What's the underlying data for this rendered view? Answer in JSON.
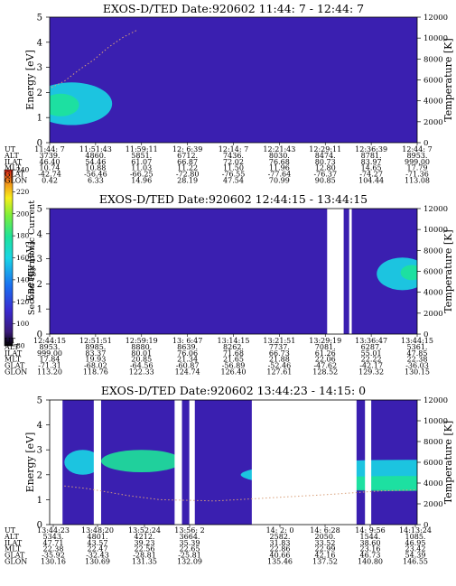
{
  "colors": {
    "background_low": "#3a1fb0",
    "background_mid": "#2f5ae0",
    "cyan": "#19d6e6",
    "green": "#1ee39a",
    "yellow": "#f7ee1a",
    "red": "#e12216",
    "gap": "#ffffff",
    "trace": "#d9a07a"
  },
  "colorbar": {
    "label": "Second Harmonic Current",
    "ticks": [
      "80",
      "100",
      "120",
      "140",
      "160",
      "180",
      "200",
      "220",
      "240"
    ],
    "range": [
      80,
      240
    ]
  },
  "chart_data": [
    {
      "type": "heatmap",
      "title": "EXOS-D/TED   Date:920602  11:44: 7 - 12:44: 7",
      "ylabel": "Energy [eV]",
      "y2label": "Temperature [K]",
      "ylim": [
        0,
        5
      ],
      "y2lim": [
        0,
        12000
      ],
      "yticks": [
        "0",
        "1",
        "2",
        "3",
        "4",
        "5"
      ],
      "y2ticks": [
        "0",
        "2000",
        "4000",
        "6000",
        "8000",
        "10000",
        "12000"
      ],
      "x_range": [
        0,
        1
      ],
      "gaps": [],
      "blobs": [
        {
          "t": 0.06,
          "e": 1.55,
          "rt": 0.11,
          "re": 0.85,
          "lvl": 0.42
        },
        {
          "t": 0.03,
          "e": 1.5,
          "rt": 0.05,
          "re": 0.45,
          "lvl": 0.6
        }
      ],
      "temperature_trace": [
        [
          0.005,
          2.2
        ],
        [
          0.04,
          2.45
        ],
        [
          0.08,
          2.9
        ],
        [
          0.12,
          3.3
        ],
        [
          0.16,
          3.8
        ],
        [
          0.2,
          4.2
        ],
        [
          0.24,
          4.5
        ]
      ],
      "labels_row": [
        "UT",
        "ALT",
        "ILAT",
        "MLT",
        "GLAT",
        "GLON"
      ],
      "columns": [
        [
          "11:44: 7",
          "3739.",
          "46.40",
          "10.74",
          "-42.74",
          "0.42"
        ],
        [
          "11:51:43",
          "4860.",
          "54.46",
          "10.88",
          "-56.46",
          "6.33"
        ],
        [
          "11:59:11",
          "5851.",
          "61.07",
          "11.03",
          "-66.25",
          "14.96"
        ],
        [
          "12: 6:39",
          "6712.",
          "66.87",
          "11.22",
          "-72.80",
          "28.19"
        ],
        [
          "12:14: 7",
          "7436.",
          "72.02",
          "11.50",
          "-76.55",
          "47.54"
        ],
        [
          "12:21:43",
          "8030.",
          "76.68",
          "11.96",
          "-77.64",
          "70.99"
        ],
        [
          "12:29:11",
          "8474.",
          "80.73",
          "12.80",
          "-76.37",
          "90.85"
        ],
        [
          "12:36:39",
          "8781.",
          "83.97",
          "14.65",
          "-74.27",
          "104.44"
        ],
        [
          "12:44: 7",
          "8953.",
          "999.00",
          "17.79",
          "-71.36",
          "113.08"
        ]
      ]
    },
    {
      "type": "heatmap",
      "title": "EXOS-D/TED   Date:920602  12:44:15 - 13:44:15",
      "ylabel": "Energy [eV]",
      "y2label": "Temperature [K]",
      "ylim": [
        0,
        5
      ],
      "y2lim": [
        0,
        12000
      ],
      "yticks": [
        "0",
        "1",
        "2",
        "3",
        "4",
        "5"
      ],
      "y2ticks": [
        "0",
        "2000",
        "4000",
        "6000",
        "8000",
        "10000",
        "12000"
      ],
      "x_range": [
        0,
        1
      ],
      "gaps": [
        [
          0.755,
          0.8
        ],
        [
          0.815,
          0.822
        ]
      ],
      "blobs": [
        {
          "t": 0.96,
          "e": 2.4,
          "rt": 0.07,
          "re": 0.65,
          "lvl": 0.45
        },
        {
          "t": 0.985,
          "e": 2.45,
          "rt": 0.03,
          "re": 0.3,
          "lvl": 0.6
        }
      ],
      "temperature_trace": [],
      "labels_row": [
        "UT",
        "ALT",
        "ILAT",
        "MLT",
        "GLAT",
        "GLON"
      ],
      "columns": [
        [
          "12:44:15",
          "8953.",
          "999.00",
          "17.84",
          "-71.31",
          "113.20"
        ],
        [
          "12:51:51",
          "8985.",
          "83.37",
          "19.93",
          "-68.02",
          "118.76"
        ],
        [
          "12:59:19",
          "8880.",
          "80.01",
          "20.85",
          "-64.56",
          "122.33"
        ],
        [
          "13: 6:47",
          "8639.",
          "76.06",
          "21.34",
          "-60.87",
          "124.74"
        ],
        [
          "13:14:15",
          "8262.",
          "71.68",
          "21.65",
          "-56.89",
          "126.40"
        ],
        [
          "13:21:51",
          "7737.",
          "66.73",
          "21.88",
          "-52.46",
          "127.61"
        ],
        [
          "13:29:19",
          "7081.",
          "61.26",
          "22.06",
          "-47.62",
          "128.52"
        ],
        [
          "13:36:47",
          "6287.",
          "55.01",
          "22.22",
          "-42.17",
          "129.32"
        ],
        [
          "13:44:15",
          "5361.",
          "47.85",
          "22.38",
          "-36.03",
          "130.15"
        ]
      ]
    },
    {
      "type": "heatmap",
      "title": "EXOS-D/TED   Date:920602  13:44:23 - 14:15: 0",
      "ylabel": "Energy [eV]",
      "y2label": "Temperature [K]",
      "ylim": [
        0,
        5
      ],
      "y2lim": [
        0,
        12000
      ],
      "yticks": [
        "0",
        "1",
        "2",
        "3",
        "4",
        "5"
      ],
      "y2ticks": [
        "0",
        "2000",
        "4000",
        "6000",
        "8000",
        "10000",
        "12000"
      ],
      "x_range": [
        0,
        1
      ],
      "gaps": [
        [
          0.0,
          0.035
        ],
        [
          0.12,
          0.14
        ],
        [
          0.34,
          0.36
        ],
        [
          0.38,
          0.395
        ],
        [
          0.55,
          0.835
        ],
        [
          0.858,
          0.875
        ]
      ],
      "blobs": [
        {
          "t": 0.09,
          "e": 2.5,
          "rt": 0.05,
          "re": 0.5,
          "lvl": 0.45
        },
        {
          "t": 0.25,
          "e": 2.55,
          "rt": 0.11,
          "re": 0.45,
          "lvl": 0.62
        },
        {
          "t": 0.97,
          "e": 2.0,
          "rt": 0.45,
          "re": 0.6,
          "lvl": 0.45
        },
        {
          "t": 0.95,
          "e": 1.65,
          "rt": 0.3,
          "re": 0.3,
          "lvl": 0.62
        }
      ],
      "temperature_trace": [
        [
          0.04,
          1.55
        ],
        [
          0.1,
          1.45
        ],
        [
          0.16,
          1.3
        ],
        [
          0.22,
          1.15
        ],
        [
          0.3,
          1.0
        ],
        [
          0.45,
          0.95
        ],
        [
          0.75,
          1.2
        ],
        [
          0.9,
          1.35
        ],
        [
          1.0,
          1.4
        ]
      ],
      "labels_row": [
        "UT",
        "ALT",
        "ILAT",
        "MLT",
        "GLAT",
        "GLON"
      ],
      "columns": [
        [
          "13:44:23",
          "5343.",
          "47.71",
          "22.38",
          "-35.92",
          "130.16"
        ],
        [
          "13:48:20",
          "4801.",
          "43.57",
          "22.47",
          "-32.43",
          "130.69"
        ],
        [
          "13:52:24",
          "4212.",
          "39.23",
          "22.56",
          "-28.81",
          "131.35"
        ],
        [
          "13:56: 2",
          "3664.",
          "35.39",
          "22.65",
          "-25.81",
          "132.09"
        ],
        [
          "14: 2: 0",
          "2582.",
          "31.83",
          "22.86",
          "40.66",
          "135.46"
        ],
        [
          "14: 6:28",
          "2050.",
          "33.52",
          "22.99",
          "42.16",
          "137.52"
        ],
        [
          "14: 9:56",
          "1544.",
          "38.60",
          "23.16",
          "46.73",
          "140.80"
        ],
        [
          "14:13:24",
          "1085.",
          "46.95",
          "23.42",
          "54.39",
          "146.55"
        ]
      ]
    }
  ]
}
